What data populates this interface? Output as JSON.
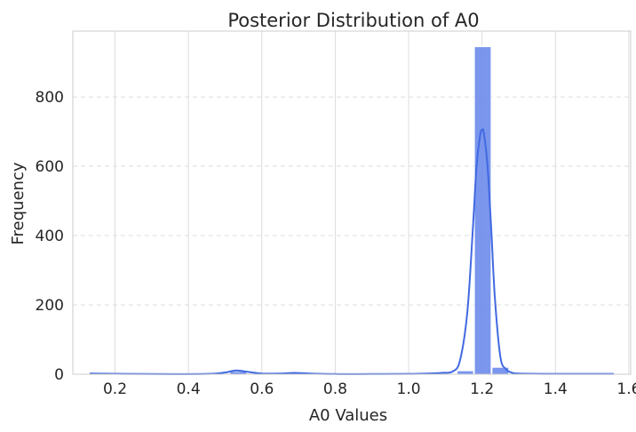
{
  "chart_data": {
    "type": "bar",
    "title": "Posterior Distribution of A0",
    "xlabel": "A0 Values",
    "ylabel": "Frequency",
    "xlim": [
      0.085,
      1.605
    ],
    "ylim": [
      0,
      990
    ],
    "x_ticks": [
      "0.2",
      "0.4",
      "0.6",
      "0.8",
      "1.0",
      "1.2",
      "1.4",
      "1.6"
    ],
    "y_ticks": [
      "0",
      "200",
      "400",
      "600",
      "800"
    ],
    "grid": {
      "x": true,
      "y": true,
      "y_style": "dashed"
    },
    "histogram": {
      "bin_edges": [
        0.131,
        0.179,
        0.226,
        0.274,
        0.322,
        0.369,
        0.417,
        0.464,
        0.512,
        0.56,
        0.607,
        0.655,
        0.702,
        0.75,
        0.798,
        0.845,
        0.893,
        0.94,
        0.988,
        1.036,
        1.083,
        1.131,
        1.178,
        1.226,
        1.274,
        1.321,
        1.369,
        1.417,
        1.464,
        1.512,
        1.559
      ],
      "counts": [
        2,
        0,
        0,
        0,
        0,
        0,
        0,
        1,
        8,
        1,
        1,
        1,
        0,
        0,
        0,
        0,
        0,
        0,
        1,
        1,
        2,
        10,
        945,
        20,
        1,
        1,
        0,
        0,
        0,
        1
      ]
    },
    "kde": {
      "x": [
        0.131,
        0.3,
        0.45,
        0.5,
        0.53,
        0.56,
        0.6,
        0.65,
        0.69,
        0.73,
        0.8,
        0.9,
        1.0,
        1.05,
        1.09,
        1.12,
        1.14,
        1.16,
        1.175,
        1.185,
        1.195,
        1.2,
        1.205,
        1.215,
        1.225,
        1.235,
        1.25,
        1.265,
        1.28,
        1.3,
        1.4,
        1.559
      ],
      "y": [
        2,
        0.5,
        1,
        5,
        11,
        7,
        2,
        2,
        4,
        2,
        0.5,
        0.5,
        1,
        2,
        4,
        8,
        40,
        180,
        420,
        600,
        690,
        705,
        695,
        600,
        420,
        220,
        50,
        15,
        5,
        2,
        1,
        1
      ]
    },
    "colors": {
      "bar": "#6b8beb",
      "line": "#4169e1",
      "grid": "#dddddd",
      "axis": "#cccccc"
    }
  }
}
